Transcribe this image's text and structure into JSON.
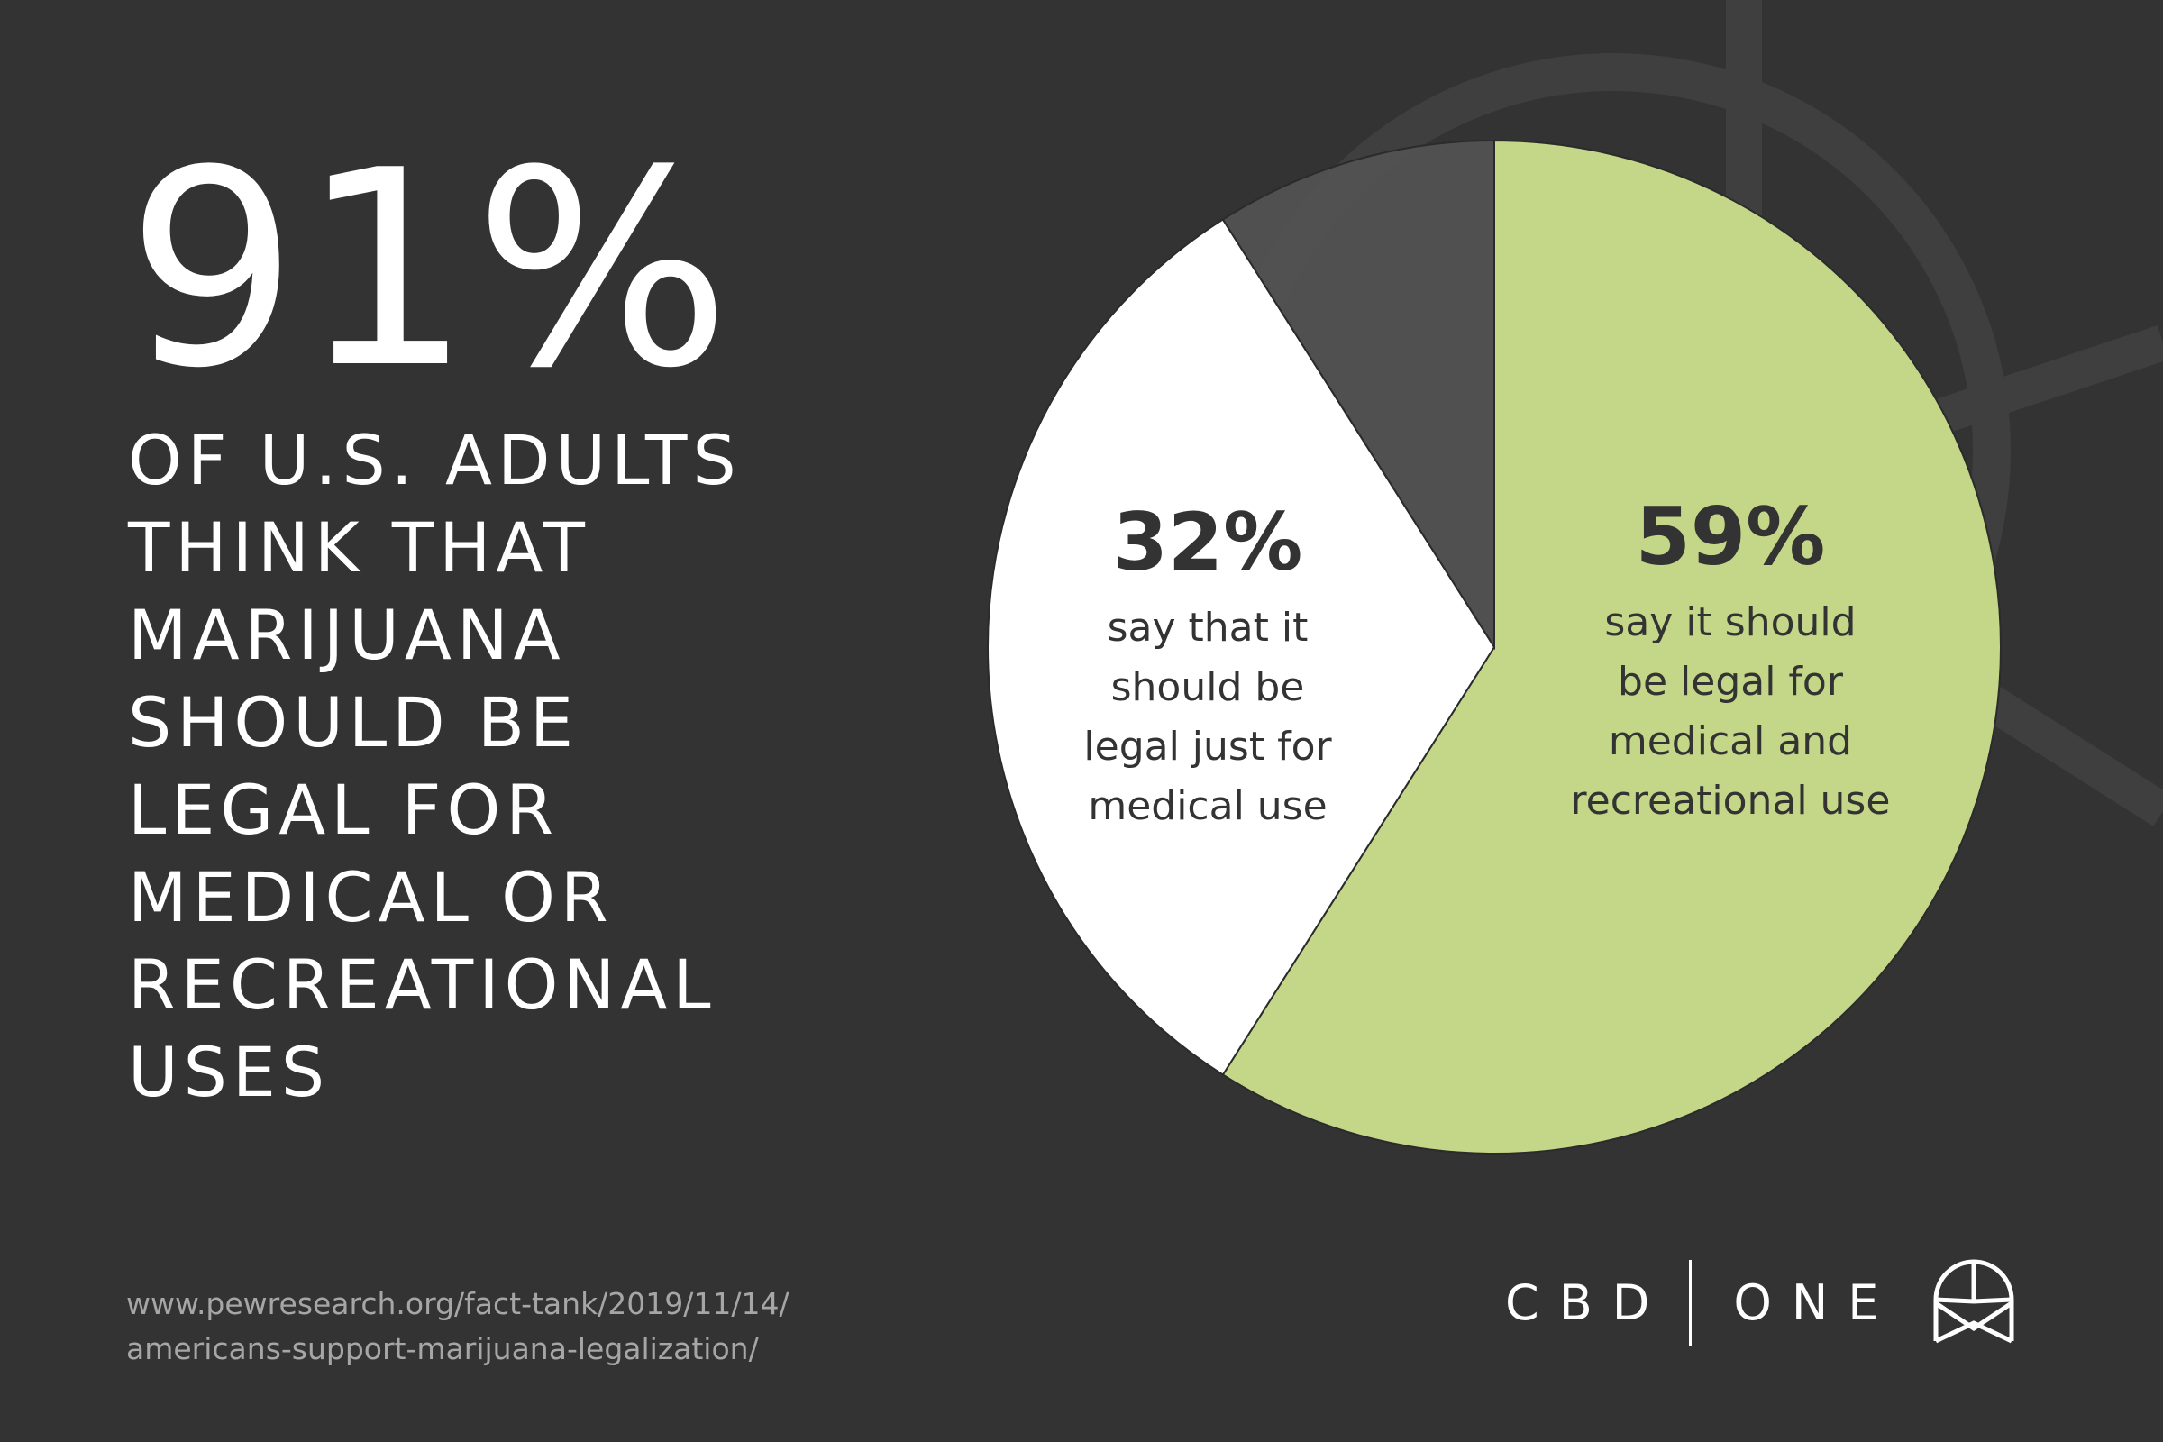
{
  "headline": {
    "number": "91%",
    "lines": [
      "OF U.S. ADULTS",
      "THINK THAT",
      "MARIJUANA",
      "SHOULD BE",
      "LEGAL FOR",
      "MEDICAL OR",
      "RECREATIONAL",
      "USES"
    ]
  },
  "chart_data": {
    "type": "pie",
    "start_angle_deg": 0,
    "direction": "clockwise",
    "slices": [
      {
        "value": 59,
        "label": "59%",
        "lines": [
          "say it should",
          "be legal for",
          "medical and",
          "recreational use"
        ],
        "color": "#c4d688"
      },
      {
        "value": 32,
        "label": "32%",
        "lines": [
          "say that it",
          "should be",
          "legal just for",
          "medical use"
        ],
        "color": "#ffffff"
      },
      {
        "value": 9,
        "label": "",
        "lines": [],
        "color": "#525252"
      }
    ]
  },
  "source": {
    "line1": "www.pewresearch.org/fact-tank/2019/11/14/",
    "line2": "americans-support-marijuana-legalization/"
  },
  "brand": {
    "left": "CBD",
    "right": "ONE",
    "logo_icon": "cbd-one-logo-icon"
  },
  "colors": {
    "background": "#333333",
    "green": "#c4d688",
    "white": "#ffffff",
    "dark_slice": "#525252",
    "label_text": "#333333",
    "source_text": "#a6a6a6"
  }
}
